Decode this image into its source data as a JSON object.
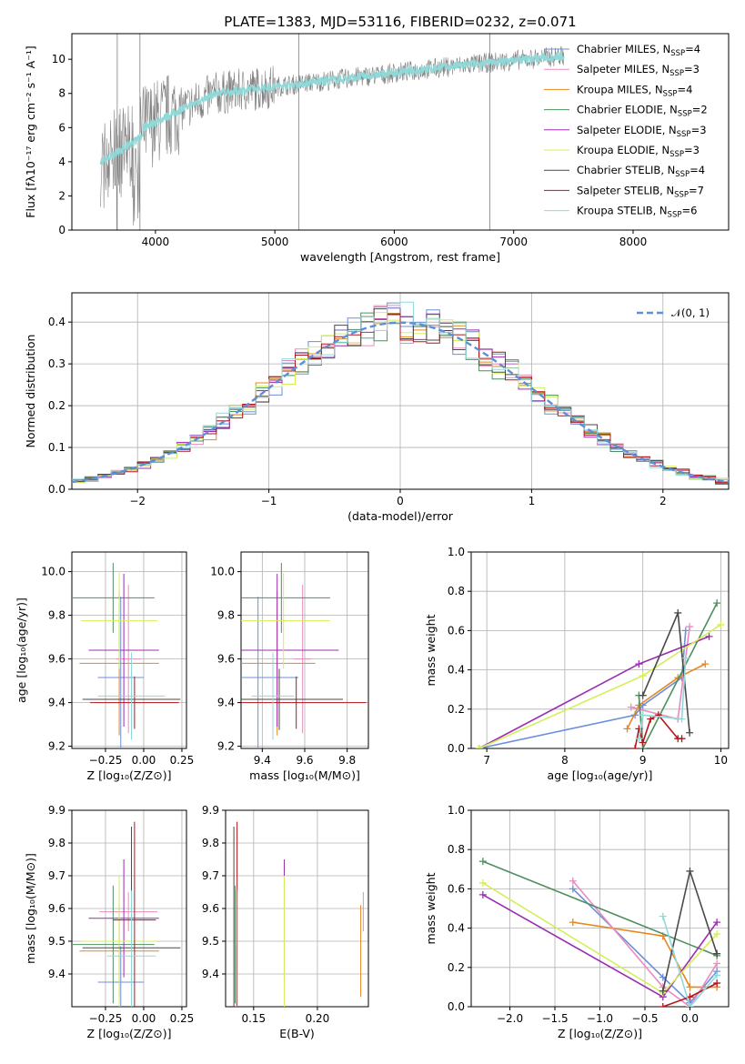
{
  "colors": [
    "#6a8fdd",
    "#e8871e",
    "#e98bbf",
    "#4f8f5f",
    "#9b2db3",
    "#d4ef5a",
    "#4a4a4a",
    "#b3151a",
    "#8fd9d9"
  ],
  "spectrum": {
    "title": "PLATE=1383, MJD=53116, FIBERID=0232, z=0.071",
    "xlabel": "wavelength [Angstrom, rest frame]",
    "ylabel": "Flux [fλ10⁻¹⁷ erg cm⁻² s⁻¹ A⁻¹]",
    "xlim": [
      3300,
      8800
    ],
    "ylim": [
      0,
      11.5
    ],
    "xticks": [
      4000,
      5000,
      6000,
      7000,
      8000
    ],
    "yticks": [
      0,
      2,
      4,
      6,
      8,
      10
    ],
    "data_color": "#808080",
    "model_color": "#8fd9d9",
    "legend": [
      {
        "label": "Chabrier MILES, N",
        "sub": "SSP",
        "suffix": "=4"
      },
      {
        "label": "Salpeter MILES, N",
        "sub": "SSP",
        "suffix": "=3"
      },
      {
        "label": "Kroupa MILES, N",
        "sub": "SSP",
        "suffix": "=4"
      },
      {
        "label": "Chabrier ELODIE, N",
        "sub": "SSP",
        "suffix": "=2"
      },
      {
        "label": "Salpeter ELODIE, N",
        "sub": "SSP",
        "suffix": "=3"
      },
      {
        "label": "Kroupa ELODIE, N",
        "sub": "SSP",
        "suffix": "=3"
      },
      {
        "label": "Chabrier STELIB, N",
        "sub": "SSP",
        "suffix": "=4"
      },
      {
        "label": "Salpeter STELIB, N",
        "sub": "SSP",
        "suffix": "=7"
      },
      {
        "label": "Kroupa STELIB, N",
        "sub": "SSP",
        "suffix": "=6"
      }
    ],
    "legend_colors": [
      "#6a8fdd",
      "#e98bbf",
      "#e8871e",
      "#4f8f5f",
      "#9b2db3",
      "#d4ef5a",
      "#4a4a4a",
      "#b3151a",
      "#8fd9d9"
    ],
    "legend_position": "top-right"
  },
  "residuals": {
    "xlabel": "(data-model)/error",
    "ylabel": "Normed distribution",
    "xlim": [
      -2.5,
      2.5
    ],
    "ylim": [
      0,
      0.47
    ],
    "xticks": [
      -2,
      -1,
      0,
      1,
      2
    ],
    "yticks": [
      0.0,
      0.1,
      0.2,
      0.3,
      0.4
    ],
    "gaussian_label": "𝒩(0, 1)",
    "gaussian_color": "#5b8fd6",
    "legend_position": "top-right",
    "grid": true
  },
  "age_vs_Z": {
    "xlabel": "Z [log₁₀(Z/Z⊙)]",
    "ylabel": "age  [log₁₀(age/yr)]",
    "xlim": [
      -0.47,
      0.28
    ],
    "ylim": [
      9.19,
      10.09
    ],
    "xticks": [
      -0.25,
      0.0,
      0.25
    ],
    "yticks": [
      9.2,
      9.4,
      9.6,
      9.8,
      10.0
    ],
    "points": [
      {
        "x": -0.15,
        "xerr": 0.15,
        "y": 9.515,
        "yerr": 0.37
      },
      {
        "x": -0.16,
        "xerr": 0.26,
        "y": 9.58,
        "yerr": 0.33
      },
      {
        "x": -0.1,
        "xerr": 0.08,
        "y": 9.6,
        "yerr": 0.34
      },
      {
        "x": -0.2,
        "xerr": 0.27,
        "y": 9.88,
        "yerr": 0.16
      },
      {
        "x": -0.13,
        "xerr": 0.23,
        "y": 9.64,
        "yerr": 0.35
      },
      {
        "x": -0.16,
        "xerr": 0.25,
        "y": 9.775,
        "yerr": 0.22
      },
      {
        "x": -0.08,
        "xerr": 0.32,
        "y": 9.415,
        "yerr": 0.14
      },
      {
        "x": -0.06,
        "xerr": 0.29,
        "y": 9.4,
        "yerr": 0.12
      },
      {
        "x": -0.08,
        "xerr": 0.22,
        "y": 9.43,
        "yerr": 0.2
      }
    ],
    "grid": true
  },
  "age_vs_mass": {
    "xlabel": "mass [log₁₀(M/M⊙)]",
    "ylabel": "",
    "xlim": [
      9.3,
      9.9
    ],
    "ylim": [
      9.19,
      10.09
    ],
    "xticks": [
      9.4,
      9.6,
      9.8
    ],
    "yticks": [
      9.2,
      9.4,
      9.6,
      9.8,
      10.0
    ],
    "points": [
      {
        "x": 9.38,
        "xerr": 0.19,
        "y": 9.515,
        "yerr": 0.37
      },
      {
        "x": 9.47,
        "xerr": 0.18,
        "y": 9.58,
        "yerr": 0.33
      },
      {
        "x": 9.59,
        "xerr": 0.04,
        "y": 9.6,
        "yerr": 0.34
      },
      {
        "x": 9.49,
        "xerr": 0.23,
        "y": 9.88,
        "yerr": 0.16
      },
      {
        "x": 9.47,
        "xerr": 0.29,
        "y": 9.64,
        "yerr": 0.35
      },
      {
        "x": 9.5,
        "xerr": 0.22,
        "y": 9.775,
        "yerr": 0.22
      },
      {
        "x": 9.48,
        "xerr": 0.3,
        "y": 9.415,
        "yerr": 0.14
      },
      {
        "x": 9.56,
        "xerr": 0.33,
        "y": 9.4,
        "yerr": 0.12
      },
      {
        "x": 9.45,
        "xerr": 0.1,
        "y": 9.43,
        "yerr": 0.2
      }
    ],
    "grid": true
  },
  "age_weights": {
    "xlabel": "age  [log₁₀(age/yr)]",
    "ylabel": "mass weight",
    "xlim": [
      6.8,
      10.1
    ],
    "ylim": [
      0,
      1.0
    ],
    "xticks": [
      7,
      8,
      9,
      10
    ],
    "yticks": [
      0.0,
      0.2,
      0.4,
      0.6,
      0.8,
      1.0
    ],
    "series": [
      {
        "x": [
          6.9,
          8.9,
          9.0,
          9.5,
          9.55
        ],
        "y": [
          0.0,
          0.17,
          0.22,
          0.36,
          0.6
        ]
      },
      {
        "x": [
          8.8,
          8.95,
          9.45,
          9.8
        ],
        "y": [
          0.1,
          0.22,
          0.36,
          0.43
        ]
      },
      {
        "x": [
          8.85,
          9.45,
          9.6
        ],
        "y": [
          0.21,
          0.15,
          0.62
        ]
      },
      {
        "x": [
          8.95,
          9.0,
          9.95
        ],
        "y": [
          0.27,
          0.0,
          0.74
        ]
      },
      {
        "x": [
          6.9,
          8.95,
          9.85
        ],
        "y": [
          0.0,
          0.43,
          0.57
        ]
      },
      {
        "x": [
          6.9,
          9.0,
          10.0
        ],
        "y": [
          0.0,
          0.37,
          0.63
        ]
      },
      {
        "x": [
          9.0,
          9.45,
          9.6
        ],
        "y": [
          0.27,
          0.69,
          0.08
        ]
      },
      {
        "x": [
          8.9,
          8.95,
          9.0,
          9.1,
          9.2,
          9.45,
          9.5
        ],
        "y": [
          0.0,
          0.1,
          0.03,
          0.15,
          0.17,
          0.05,
          0.05
        ]
      },
      {
        "x": [
          8.95,
          9.0,
          9.5,
          9.55
        ],
        "y": [
          0.05,
          0.17,
          0.15,
          0.46
        ]
      }
    ],
    "grid": true
  },
  "mass_vs_Z": {
    "xlabel": "Z [log₁₀(Z/Z⊙)]",
    "ylabel": "mass [log₁₀(M/M⊙)]",
    "xlim": [
      -0.47,
      0.28
    ],
    "ylim": [
      9.3,
      9.9
    ],
    "xticks": [
      -0.25,
      0.0,
      0.25
    ],
    "yticks": [
      9.4,
      9.5,
      9.6,
      9.7,
      9.8,
      9.9
    ],
    "points": [
      {
        "x": -0.15,
        "xerr": 0.15,
        "y": 9.375,
        "yerr": 0.11
      },
      {
        "x": -0.16,
        "xerr": 0.26,
        "y": 9.47,
        "yerr": 0.14
      },
      {
        "x": -0.1,
        "xerr": 0.19,
        "y": 9.59,
        "yerr": 0.06
      },
      {
        "x": -0.2,
        "xerr": 0.27,
        "y": 9.49,
        "yerr": 0.18
      },
      {
        "x": -0.13,
        "xerr": 0.23,
        "y": 9.57,
        "yerr": 0.18
      },
      {
        "x": -0.16,
        "xerr": 0.25,
        "y": 9.5,
        "yerr": 0.2
      },
      {
        "x": -0.08,
        "xerr": 0.32,
        "y": 9.48,
        "yerr": 0.37
      },
      {
        "x": -0.06,
        "xerr": 0.14,
        "y": 9.565,
        "yerr": 0.3
      },
      {
        "x": -0.08,
        "xerr": 0.16,
        "y": 9.455,
        "yerr": 0.2
      }
    ],
    "grid": true
  },
  "mass_vs_ebv": {
    "xlabel": "E(B-V)",
    "ylabel": "",
    "xlim": [
      0.128,
      0.24
    ],
    "ylim": [
      9.3,
      9.9
    ],
    "xticks": [
      0.15,
      0.2
    ],
    "yticks": [
      9.4,
      9.5,
      9.6,
      9.7,
      9.8,
      9.9
    ],
    "points": [
      {
        "x": 0.1365,
        "y": 9.375,
        "yerr": 0.11
      },
      {
        "x": 0.234,
        "y": 9.47,
        "yerr": 0.14
      },
      {
        "x": 0.236,
        "y": 9.59,
        "yerr": 0.06
      },
      {
        "x": 0.1355,
        "y": 9.49,
        "yerr": 0.18
      },
      {
        "x": 0.174,
        "y": 9.57,
        "yerr": 0.18
      },
      {
        "x": 0.174,
        "y": 9.5,
        "yerr": 0.2
      },
      {
        "x": 0.1345,
        "y": 9.48,
        "yerr": 0.37
      },
      {
        "x": 0.137,
        "y": 9.565,
        "yerr": 0.3
      },
      {
        "x": 0.1365,
        "y": 9.455,
        "yerr": 0.2
      }
    ],
    "grid": true
  },
  "Z_weights": {
    "xlabel": "Z [log₁₀(Z/Z⊙)]",
    "ylabel": "mass weight",
    "xlim": [
      -2.43,
      0.43
    ],
    "ylim": [
      0,
      1.0
    ],
    "xticks": [
      -2.0,
      -1.5,
      -1.0,
      -0.5,
      0.0
    ],
    "yticks": [
      0.0,
      0.2,
      0.4,
      0.6,
      0.8,
      1.0
    ],
    "series": [
      {
        "x": [
          -1.3,
          -0.3,
          0.0,
          0.3
        ],
        "y": [
          0.6,
          0.15,
          0.02,
          0.18
        ]
      },
      {
        "x": [
          -1.3,
          -0.3,
          0.0,
          0.3
        ],
        "y": [
          0.43,
          0.36,
          0.1,
          0.1
        ]
      },
      {
        "x": [
          -1.3,
          -0.3,
          0.0,
          0.3
        ],
        "y": [
          0.64,
          0.1,
          0.0,
          0.22
        ]
      },
      {
        "x": [
          -2.3,
          0.3
        ],
        "y": [
          0.74,
          0.26
        ]
      },
      {
        "x": [
          -2.3,
          -0.3,
          0.3
        ],
        "y": [
          0.57,
          0.05,
          0.43
        ]
      },
      {
        "x": [
          -2.3,
          -0.3,
          0.3
        ],
        "y": [
          0.63,
          0.07,
          0.37
        ]
      },
      {
        "x": [
          -0.3,
          0.0,
          0.3
        ],
        "y": [
          0.08,
          0.69,
          0.27
        ]
      },
      {
        "x": [
          -0.3,
          0.0,
          0.3
        ],
        "y": [
          0.0,
          0.05,
          0.12
        ]
      },
      {
        "x": [
          -0.3,
          0.0,
          0.3
        ],
        "y": [
          0.46,
          0.0,
          0.16
        ]
      }
    ],
    "grid": true
  }
}
